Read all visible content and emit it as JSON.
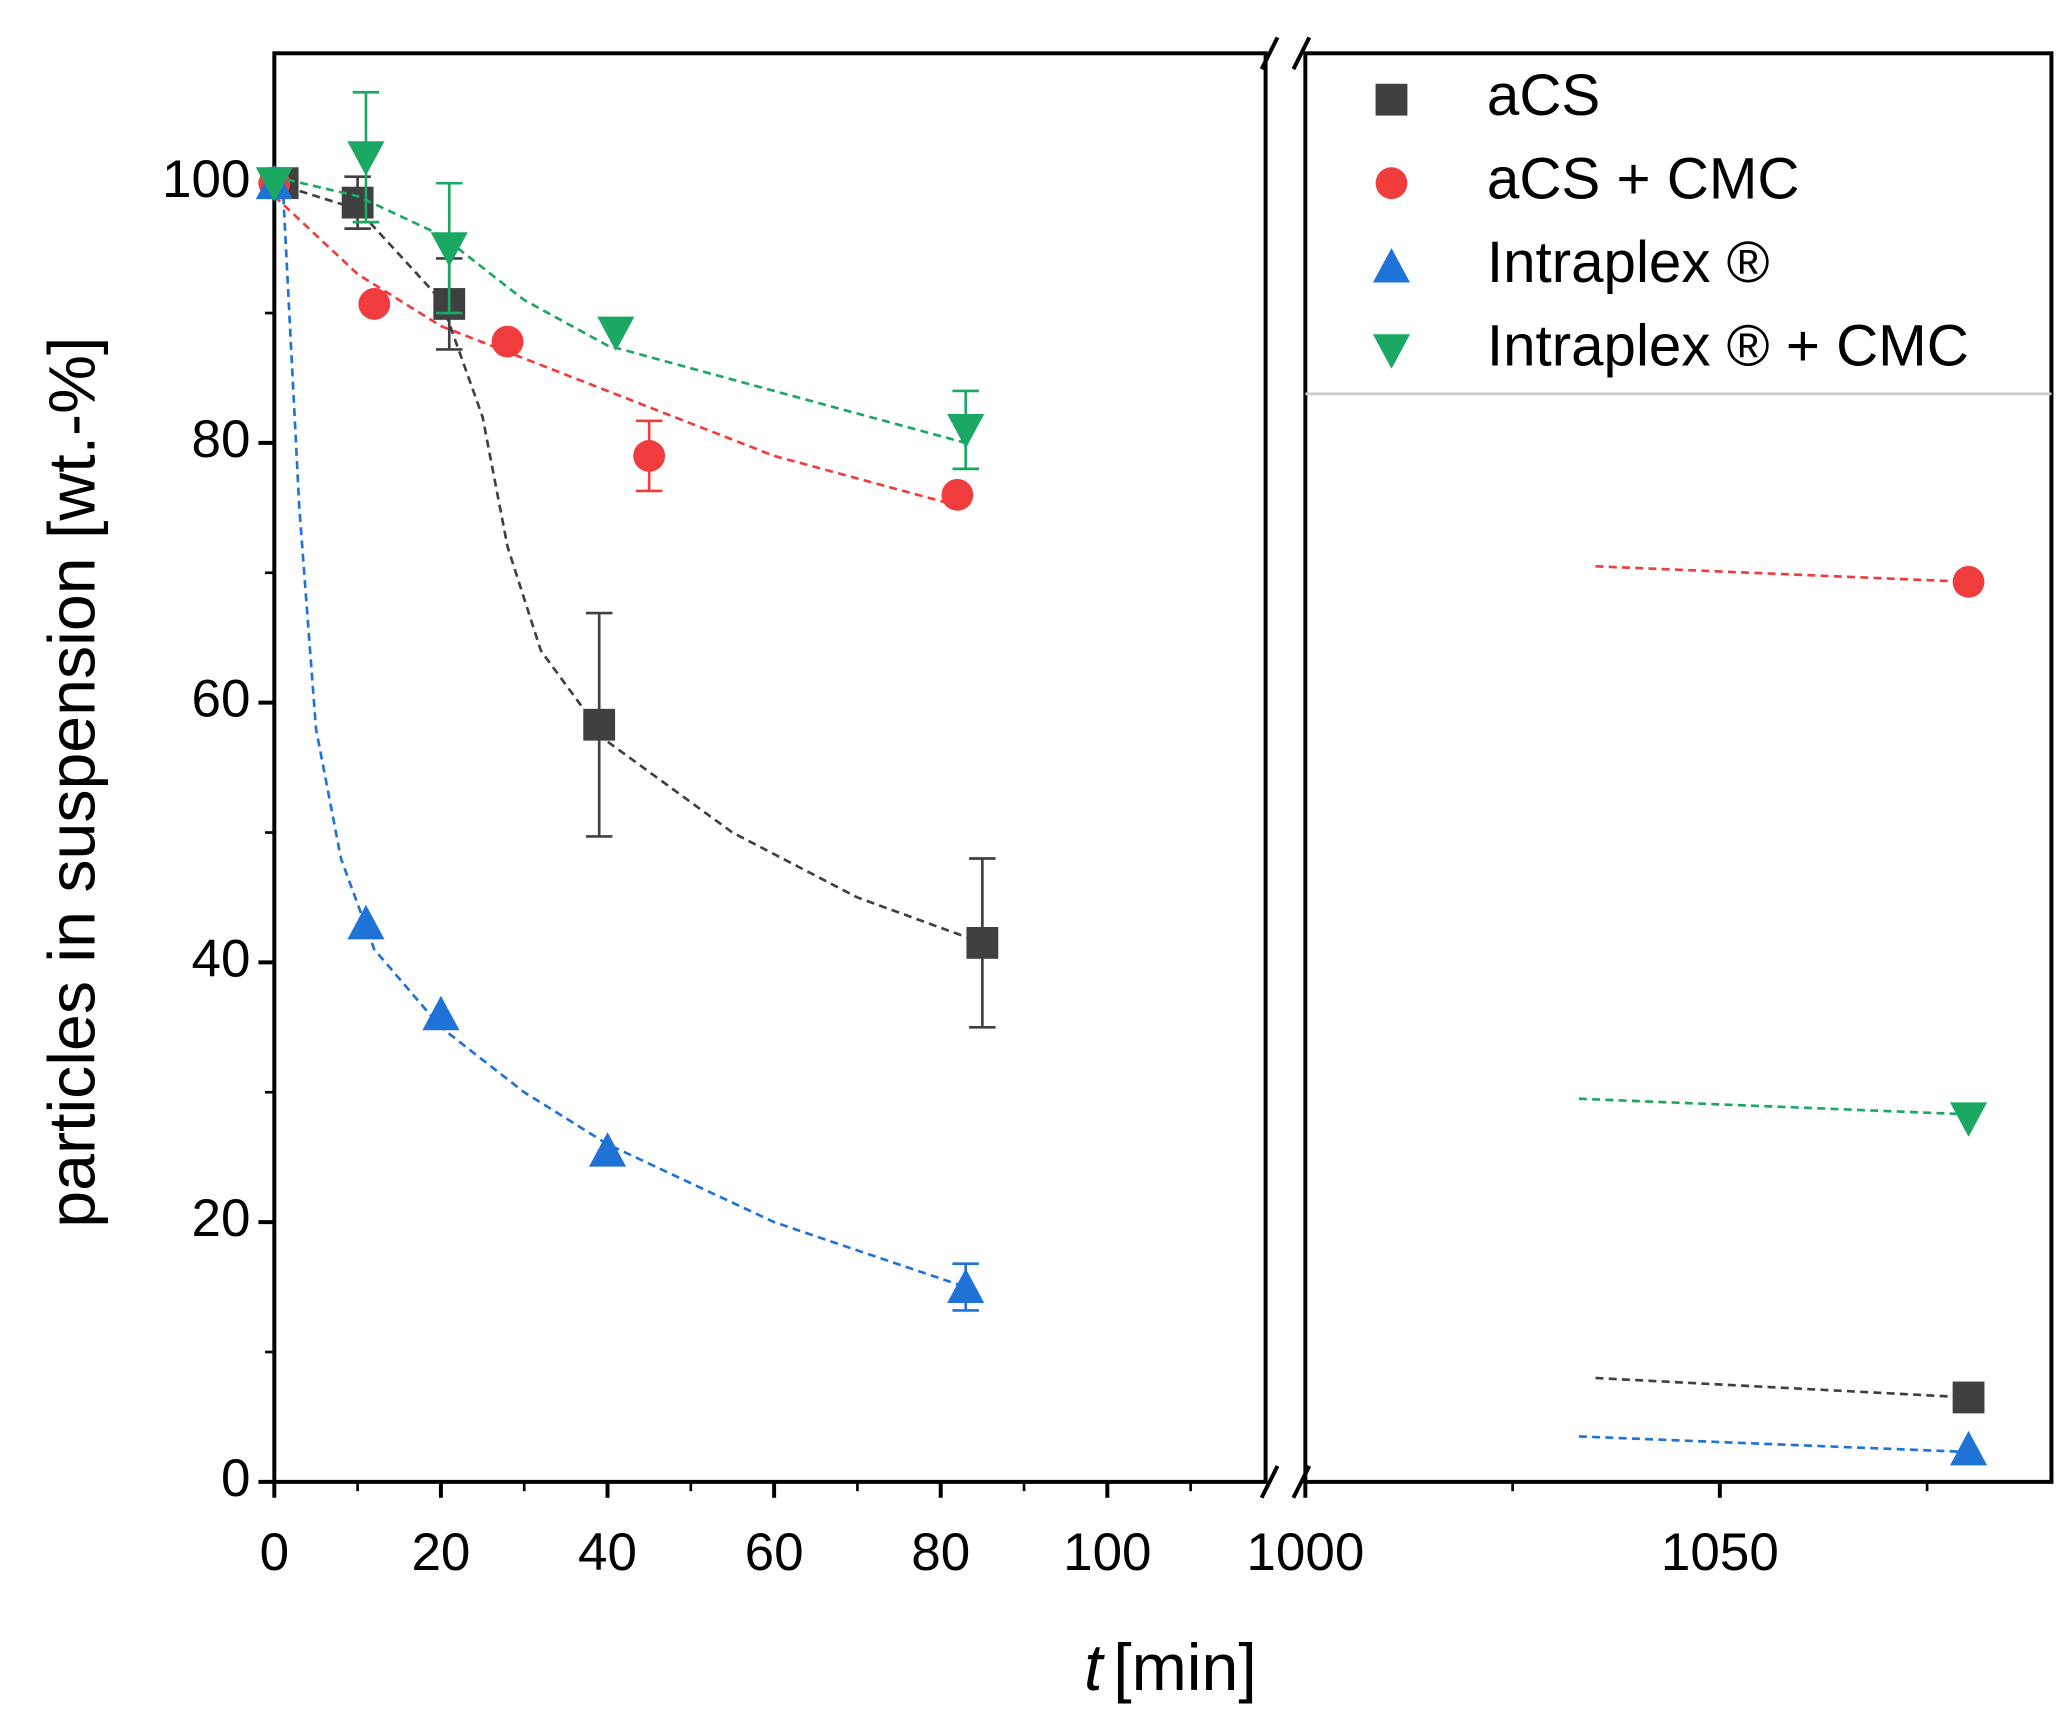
{
  "chart_data": {
    "type": "scatter",
    "xlabel_var": "t",
    "xlabel_unit": "[min]",
    "ylabel": "particles in suspension [wt.-%]",
    "ylim": [
      0,
      110
    ],
    "yticks": [
      0,
      20,
      40,
      60,
      80,
      100
    ],
    "yminor": [
      10,
      30,
      50,
      70,
      90
    ],
    "panels": [
      {
        "xlim": [
          0,
          119
        ],
        "xticks": [
          0,
          20,
          40,
          60,
          80,
          100
        ],
        "xminor": [
          10,
          30,
          50,
          70,
          90,
          110
        ]
      },
      {
        "xlim": [
          1000,
          1090
        ],
        "xticks": [
          1000,
          1050
        ],
        "xminor": [
          1025,
          1075
        ]
      }
    ],
    "legend": "upper right",
    "series": [
      {
        "name": "aCS",
        "color": "#404040",
        "marker": "square",
        "x": [
          1,
          10,
          21,
          39,
          85,
          1080
        ],
        "values": [
          100,
          98.5,
          90.7,
          58.3,
          41.5,
          6.5
        ],
        "errors": [
          null,
          2,
          3.5,
          8.6,
          6.5,
          null
        ],
        "fit_x": [
          0,
          10,
          20,
          25,
          28,
          32,
          40,
          55,
          70,
          85,
          1035,
          1080
        ],
        "fit_y": [
          100,
          98,
          91,
          82,
          72,
          64,
          57,
          50,
          45,
          41.5,
          8,
          6.5
        ]
      },
      {
        "name": "aCS + CMC",
        "color": "#f03c3c",
        "marker": "circle",
        "x": [
          0,
          12,
          28,
          45,
          82,
          1080
        ],
        "values": [
          100,
          90.7,
          87.8,
          79,
          76,
          69.3
        ],
        "errors": [
          null,
          null,
          null,
          2.7,
          null,
          null
        ],
        "fit_x": [
          0,
          10,
          20,
          40,
          60,
          83,
          1035,
          1080
        ],
        "fit_y": [
          99,
          93,
          89,
          84,
          79,
          75,
          70.5,
          69.3
        ]
      },
      {
        "name": "Intraplex ®",
        "color": "#1f72d6",
        "marker": "triangle-up",
        "x": [
          0,
          11,
          20,
          40,
          83,
          1080
        ],
        "values": [
          100,
          43,
          36,
          25.5,
          15,
          2.5
        ],
        "errors": [
          null,
          null,
          null,
          null,
          1.8,
          null
        ],
        "fit_x": [
          1,
          3,
          5,
          8,
          12,
          20,
          30,
          40,
          60,
          83,
          1033,
          1080
        ],
        "fit_y": [
          100,
          75,
          58,
          48,
          41,
          35,
          30,
          26,
          20,
          15,
          3.5,
          2.3
        ]
      },
      {
        "name": "Intraplex ® + CMC",
        "color": "#1aa862",
        "marker": "triangle-down",
        "x": [
          0,
          11,
          21,
          41,
          83,
          1080
        ],
        "values": [
          100,
          102,
          95,
          88.5,
          81,
          28
        ],
        "errors": [
          null,
          5,
          5,
          null,
          3,
          null
        ],
        "fit_x": [
          0,
          10,
          20,
          30,
          40,
          60,
          83,
          1033,
          1080
        ],
        "fit_y": [
          100.5,
          99,
          96,
          91,
          87.5,
          84,
          80,
          29.5,
          28.3
        ]
      }
    ]
  }
}
